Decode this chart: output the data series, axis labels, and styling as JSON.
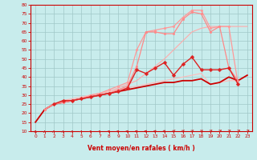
{
  "xlabel": "Vent moyen/en rafales ( km/h )",
  "xlim": [
    -0.5,
    23.5
  ],
  "ylim": [
    10,
    80
  ],
  "yticks": [
    10,
    15,
    20,
    25,
    30,
    35,
    40,
    45,
    50,
    55,
    60,
    65,
    70,
    75,
    80
  ],
  "xticks": [
    0,
    1,
    2,
    3,
    4,
    5,
    6,
    7,
    8,
    9,
    10,
    11,
    12,
    13,
    14,
    15,
    16,
    17,
    18,
    19,
    20,
    21,
    22,
    23
  ],
  "bg_color": "#c8ecec",
  "grid_color": "#a0c8c8",
  "lines": [
    {
      "x": [
        1,
        2,
        3,
        4,
        5,
        6,
        7,
        8,
        9,
        10,
        11,
        12,
        13,
        14,
        15,
        16,
        17,
        18,
        19,
        20,
        21,
        22,
        23
      ],
      "y": [
        22,
        25,
        26,
        27,
        28,
        30,
        31,
        32,
        34,
        36,
        38,
        42,
        46,
        50,
        55,
        60,
        65,
        67,
        68,
        68,
        68,
        68,
        68
      ],
      "color": "#ffaaaa",
      "lw": 0.8,
      "marker": null
    },
    {
      "x": [
        1,
        2,
        3,
        4,
        5,
        6,
        7,
        8,
        9,
        10,
        11,
        12,
        13,
        14,
        15,
        16,
        17,
        18,
        19,
        20,
        21,
        22
      ],
      "y": [
        22,
        25,
        26,
        27,
        28,
        30,
        31,
        33,
        35,
        37,
        55,
        65,
        66,
        67,
        68,
        73,
        77,
        77,
        67,
        68,
        68,
        36
      ],
      "color": "#ff9999",
      "lw": 0.9,
      "marker": "o",
      "markersize": 2.0
    },
    {
      "x": [
        1,
        2,
        3,
        4,
        5,
        6,
        7,
        8,
        9,
        10,
        11,
        12,
        13,
        14,
        15,
        16,
        17,
        18,
        19,
        20,
        21,
        22
      ],
      "y": [
        22,
        25,
        26,
        27,
        28,
        29,
        30,
        31,
        33,
        35,
        46,
        65,
        65,
        64,
        64,
        72,
        76,
        75,
        65,
        68,
        45,
        38
      ],
      "color": "#ff8888",
      "lw": 0.9,
      "marker": "o",
      "markersize": 2.0
    },
    {
      "x": [
        2,
        3,
        4,
        5,
        6,
        7,
        8,
        9,
        10,
        11,
        12,
        13,
        14,
        15,
        16,
        17,
        18,
        19,
        20,
        21,
        22
      ],
      "y": [
        25,
        27,
        27,
        28,
        29,
        30,
        31,
        32,
        34,
        44,
        42,
        45,
        48,
        41,
        47,
        51,
        44,
        44,
        44,
        45,
        36
      ],
      "color": "#dd2222",
      "lw": 1.0,
      "marker": "D",
      "markersize": 2.5
    },
    {
      "x": [
        1,
        2,
        3,
        4,
        5,
        6,
        7,
        8,
        9,
        10,
        11,
        12,
        13,
        14,
        15,
        16,
        17,
        18,
        19,
        20,
        21,
        22,
        23
      ],
      "y": [
        22,
        25,
        27,
        28,
        29,
        30,
        31,
        32,
        33,
        34,
        35,
        36,
        37,
        38,
        39,
        40,
        41,
        42,
        36,
        37,
        38,
        38,
        41
      ],
      "color": "#ffbbbb",
      "lw": 0.8,
      "marker": null
    },
    {
      "x": [
        0,
        1,
        2,
        3,
        4,
        5,
        6,
        7,
        8,
        9,
        10,
        11,
        12,
        13,
        14,
        15,
        16,
        17,
        18,
        19,
        20,
        21,
        22,
        23
      ],
      "y": [
        15,
        22,
        25,
        26,
        27,
        28,
        29,
        30,
        31,
        32,
        33,
        34,
        35,
        36,
        37,
        37,
        38,
        38,
        39,
        36,
        37,
        40,
        38,
        41
      ],
      "color": "#cc0000",
      "lw": 1.3,
      "marker": null
    }
  ],
  "arrow_markers": [
    0,
    1,
    2,
    3,
    4,
    5,
    6,
    7,
    8,
    9,
    10,
    11,
    12,
    13,
    14,
    15,
    16,
    17,
    18,
    19,
    20,
    21,
    22,
    23
  ],
  "arrow_color": "#cc2222"
}
